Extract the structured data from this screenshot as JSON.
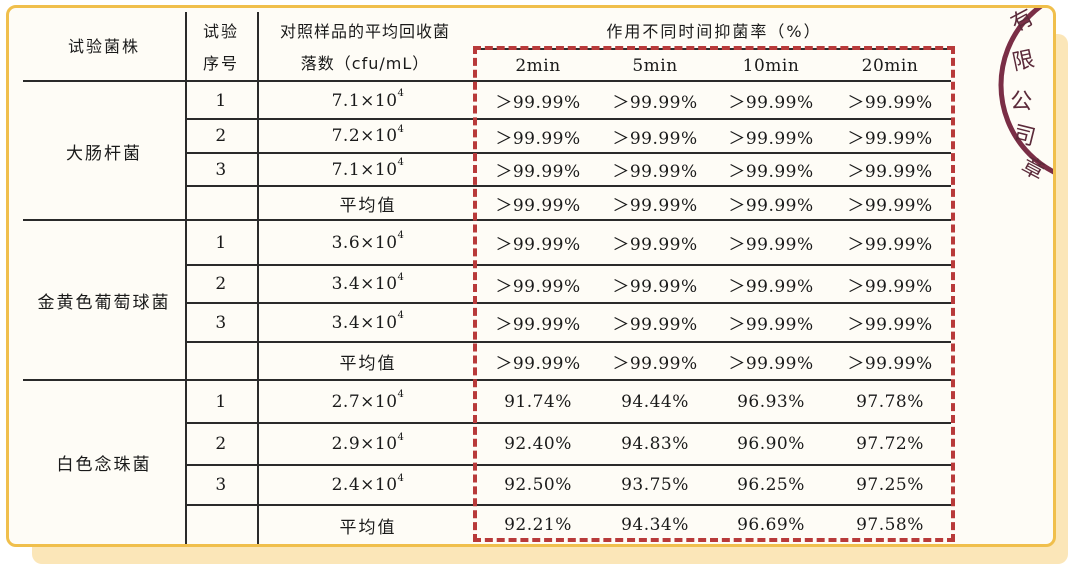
{
  "table": {
    "header": {
      "strain": "试验菌株",
      "seq_line1": "试验",
      "seq_line2": "序号",
      "count_line1": "对照样品的平均回收菌",
      "count_line2": "落数（cfu/mL）",
      "rate_title": "作用不同时间抑菌率（%）",
      "times": [
        "2min",
        "5min",
        "10min",
        "20min"
      ]
    },
    "groups": [
      {
        "strain": "大肠杆菌",
        "rows": [
          {
            "seq": "1",
            "count_base": "7.1×10",
            "count_exp": "4",
            "rates": [
              "＞99.99%",
              "＞99.99%",
              "＞99.99%",
              "＞99.99%"
            ]
          },
          {
            "seq": "2",
            "count_base": "7.2×10",
            "count_exp": "4",
            "rates": [
              "＞99.99%",
              "＞99.99%",
              "＞99.99%",
              "＞99.99%"
            ]
          },
          {
            "seq": "3",
            "count_base": "7.1×10",
            "count_exp": "4",
            "rates": [
              "＞99.99%",
              "＞99.99%",
              "＞99.99%",
              "＞99.99%"
            ]
          }
        ],
        "average": {
          "label": "平均值",
          "rates": [
            "＞99.99%",
            "＞99.99%",
            "＞99.99%",
            "＞99.99%"
          ]
        }
      },
      {
        "strain": "金黄色葡萄球菌",
        "rows": [
          {
            "seq": "1",
            "count_base": "3.6×10",
            "count_exp": "4",
            "rates": [
              "＞99.99%",
              "＞99.99%",
              "＞99.99%",
              "＞99.99%"
            ]
          },
          {
            "seq": "2",
            "count_base": "3.4×10",
            "count_exp": "4",
            "rates": [
              "＞99.99%",
              "＞99.99%",
              "＞99.99%",
              "＞99.99%"
            ]
          },
          {
            "seq": "3",
            "count_base": "3.4×10",
            "count_exp": "4",
            "rates": [
              "＞99.99%",
              "＞99.99%",
              "＞99.99%",
              "＞99.99%"
            ]
          }
        ],
        "average": {
          "label": "平均值",
          "rates": [
            "＞99.99%",
            "＞99.99%",
            "＞99.99%",
            "＞99.99%"
          ]
        }
      },
      {
        "strain": "白色念珠菌",
        "rows": [
          {
            "seq": "1",
            "count_base": "2.7×10",
            "count_exp": "4",
            "rates": [
              "91.74%",
              "94.44%",
              "96.93%",
              "97.78%"
            ]
          },
          {
            "seq": "2",
            "count_base": "2.9×10",
            "count_exp": "4",
            "rates": [
              "92.40%",
              "94.83%",
              "96.90%",
              "97.72%"
            ]
          },
          {
            "seq": "3",
            "count_base": "2.4×10",
            "count_exp": "4",
            "rates": [
              "92.50%",
              "93.75%",
              "96.25%",
              "97.25%"
            ]
          }
        ],
        "average": {
          "label": "平均值",
          "rates": [
            "92.21%",
            "94.34%",
            "96.69%",
            "97.58%"
          ]
        }
      }
    ]
  },
  "seal": {
    "text": [
      "有",
      "限",
      "公",
      "司",
      "章"
    ]
  },
  "colors": {
    "frame": "#f0bf4c",
    "backdrop": "#fbe6b8",
    "highlight": "#b83a3a",
    "seal": "#7a2e46"
  }
}
